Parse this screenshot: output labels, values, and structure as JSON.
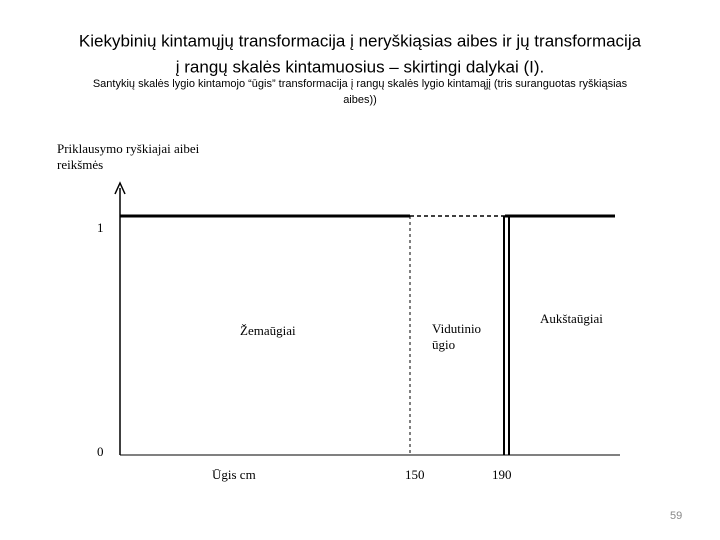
{
  "header": {
    "title_lines": [
      "Kiekybinių kintamųjų transformacija į neryškiąsias aibes ir jų transformacija",
      "į rangų skalės kintamuosius – skirtingi dalykai (I)."
    ],
    "subtitle_lines": [
      "Santykių skalės lygio kintamojo “ūgis” transformacija į rangų skalės lygio kintamąjį (tris suranguotas ryškiąsias",
      "aibes))"
    ]
  },
  "diagram": {
    "y_axis_label_lines": [
      "Priklausymo ryškiajai aibei",
      "reikšmės"
    ],
    "y_ticks": [
      "1",
      "0"
    ],
    "x_axis_label": "Ūgis cm",
    "x_ticks": [
      "150",
      "190"
    ],
    "sets": [
      {
        "label_lines": [
          "Žemaūgiai"
        ]
      },
      {
        "label_lines": [
          "Vidutinio",
          "ūgio"
        ]
      },
      {
        "label_lines": [
          "Aukštaūgiai"
        ]
      }
    ]
  },
  "footer": {
    "page_number": "59"
  }
}
